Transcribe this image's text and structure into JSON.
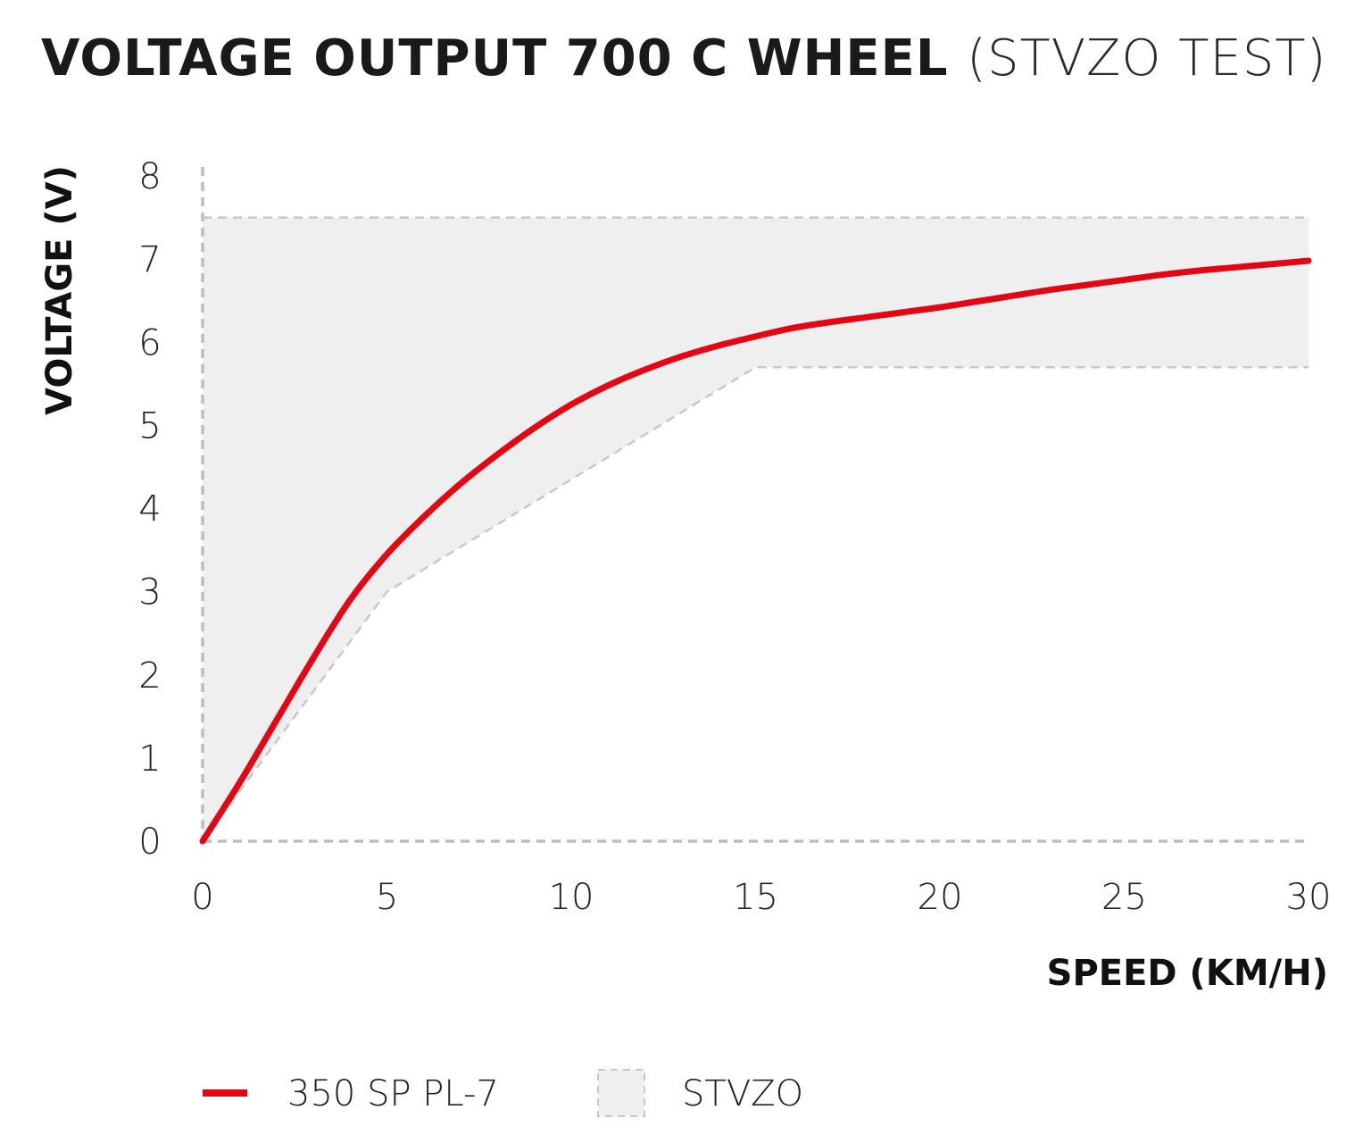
{
  "title": {
    "bold": "VOLTAGE OUTPUT 700 C WHEEL",
    "light": "(STVZO TEST)"
  },
  "colors": {
    "line": "#e30613",
    "band": "#efefef",
    "band_border": "#c8c8c8",
    "axis": "#bdbdbd",
    "text": "#1a1a1a"
  },
  "legend": [
    {
      "label": "350 SP PL-7",
      "type": "line"
    },
    {
      "label": "STVZO",
      "type": "area"
    }
  ],
  "chart_data": {
    "type": "line",
    "title": "VOLTAGE OUTPUT 700 C WHEEL (STVZO TEST)",
    "xlabel": "SPEED (KM/H)",
    "ylabel": "VOLTAGE (V)",
    "xlim": [
      0,
      30
    ],
    "ylim": [
      0,
      8
    ],
    "xticks": [
      "0",
      "5",
      "10",
      "15",
      "20",
      "25",
      "30"
    ],
    "yticks": [
      "0",
      "1",
      "2",
      "3",
      "4",
      "5",
      "6",
      "7",
      "8"
    ],
    "grid": false,
    "legend_position": "bottom",
    "series": [
      {
        "name": "350 SP PL-7",
        "x": [
          0,
          1,
          2,
          3,
          4,
          5,
          6,
          7,
          8,
          9,
          10,
          11,
          12,
          13,
          14,
          15,
          16,
          17,
          18,
          19,
          20,
          21,
          22,
          23,
          24,
          25,
          26,
          27,
          28,
          29,
          30
        ],
        "y": [
          0,
          0.7,
          1.45,
          2.2,
          2.9,
          3.45,
          3.9,
          4.3,
          4.65,
          4.97,
          5.25,
          5.48,
          5.67,
          5.83,
          5.96,
          6.07,
          6.17,
          6.24,
          6.3,
          6.36,
          6.42,
          6.49,
          6.56,
          6.63,
          6.69,
          6.75,
          6.81,
          6.86,
          6.9,
          6.94,
          6.98
        ]
      }
    ],
    "bands": [
      {
        "name": "STVZO",
        "upper": {
          "x": [
            0,
            30
          ],
          "y": [
            7.5,
            7.5
          ]
        },
        "lower": {
          "x": [
            0,
            5,
            15,
            30
          ],
          "y": [
            0,
            3.0,
            5.7,
            5.7
          ]
        }
      }
    ]
  }
}
